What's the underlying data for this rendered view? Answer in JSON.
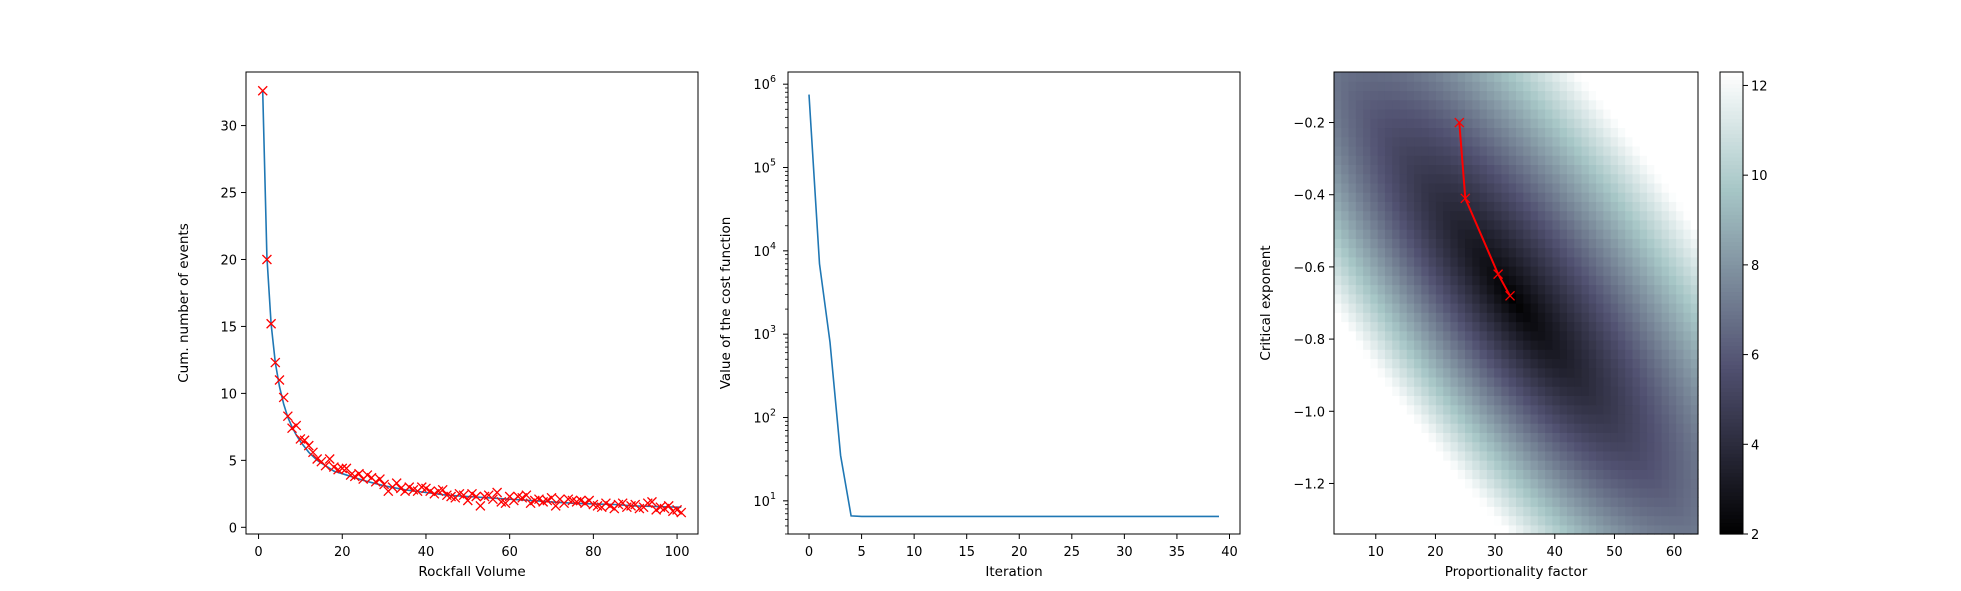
{
  "chart_data": [
    {
      "type": "line",
      "xlabel": "Rockfall Volume",
      "ylabel": "Cum. number of events",
      "xlim": [
        -3,
        105
      ],
      "ylim": [
        -0.5,
        34
      ],
      "xticks": [
        0,
        20,
        40,
        60,
        80,
        100
      ],
      "yticks": [
        0,
        5,
        10,
        15,
        20,
        25,
        30
      ],
      "series": [
        {
          "kind": "scatter",
          "marker": "x",
          "color": "#ff0000",
          "x": [
            1,
            2,
            3,
            4,
            5,
            6,
            7,
            8,
            9,
            10,
            11,
            12,
            13,
            14,
            15,
            16,
            17,
            18,
            19,
            20,
            21,
            22,
            23,
            24,
            25,
            26,
            27,
            28,
            29,
            30,
            31,
            32,
            33,
            34,
            35,
            36,
            37,
            38,
            39,
            40,
            41,
            42,
            43,
            44,
            45,
            46,
            47,
            48,
            49,
            50,
            51,
            52,
            53,
            54,
            55,
            56,
            57,
            58,
            59,
            60,
            61,
            62,
            63,
            64,
            65,
            66,
            67,
            68,
            69,
            70,
            71,
            72,
            73,
            74,
            75,
            76,
            77,
            78,
            79,
            80,
            81,
            82,
            83,
            84,
            85,
            86,
            87,
            88,
            89,
            90,
            91,
            92,
            93,
            94,
            95,
            96,
            97,
            98,
            99,
            100,
            101
          ],
          "y": [
            32.6,
            20.0,
            15.2,
            12.3,
            11.0,
            9.7,
            8.3,
            7.4,
            7.6,
            6.6,
            6.5,
            6.1,
            5.6,
            5.1,
            4.9,
            4.6,
            5.1,
            4.5,
            4.3,
            4.4,
            4.4,
            3.9,
            3.8,
            4.0,
            3.6,
            3.9,
            3.7,
            3.4,
            3.6,
            3.2,
            2.7,
            3.0,
            3.3,
            2.9,
            2.7,
            3.0,
            2.8,
            2.7,
            3.0,
            2.9,
            2.7,
            2.5,
            2.7,
            2.8,
            2.4,
            2.3,
            2.2,
            2.5,
            2.4,
            2.0,
            2.5,
            2.3,
            1.6,
            2.3,
            2.4,
            2.1,
            2.6,
            1.9,
            1.8,
            2.3,
            2.0,
            2.3,
            2.2,
            2.4,
            1.8,
            2.0,
            2.1,
            1.9,
            2.0,
            2.2,
            1.6,
            2.1,
            1.8,
            2.1,
            2.0,
            1.9,
            2.0,
            1.8,
            2.0,
            1.7,
            1.6,
            1.5,
            1.8,
            1.6,
            1.4,
            1.7,
            1.8,
            1.5,
            1.6,
            1.7,
            1.4,
            1.5,
            1.8,
            1.9,
            1.3,
            1.5,
            1.4,
            1.6,
            1.2,
            1.3,
            1.1
          ]
        },
        {
          "kind": "line",
          "color": "#1f77b4",
          "x": [
            1,
            2,
            3,
            4,
            5,
            6,
            7,
            8,
            9,
            10,
            12,
            14,
            16,
            18,
            20,
            25,
            30,
            35,
            40,
            45,
            50,
            55,
            60,
            65,
            70,
            75,
            80,
            85,
            90,
            95,
            100,
            101
          ],
          "y": [
            32.6,
            20.2,
            15.2,
            12.3,
            10.5,
            9.2,
            8.2,
            7.5,
            6.9,
            6.4,
            5.6,
            5.0,
            4.6,
            4.2,
            4.0,
            3.5,
            3.1,
            2.8,
            2.6,
            2.4,
            2.3,
            2.2,
            2.1,
            2.0,
            1.9,
            1.8,
            1.75,
            1.7,
            1.6,
            1.55,
            1.5,
            1.5
          ]
        }
      ]
    },
    {
      "type": "line",
      "xlabel": "Iteration",
      "ylabel": "Value of the cost function",
      "yscale": "log",
      "xlim": [
        -2,
        41
      ],
      "ylim": [
        4,
        1400000
      ],
      "xticks": [
        0,
        5,
        10,
        15,
        20,
        25,
        30,
        35,
        40
      ],
      "yticks": [
        {
          "value": 10,
          "base": "10",
          "exp": "1"
        },
        {
          "value": 100,
          "base": "10",
          "exp": "2"
        },
        {
          "value": 1000,
          "base": "10",
          "exp": "3"
        },
        {
          "value": 10000,
          "base": "10",
          "exp": "4"
        },
        {
          "value": 100000,
          "base": "10",
          "exp": "5"
        },
        {
          "value": 1000000,
          "base": "10",
          "exp": "6"
        }
      ],
      "series": [
        {
          "color": "#1f77b4",
          "x": [
            0,
            1,
            2,
            3,
            4,
            5,
            10,
            15,
            20,
            25,
            30,
            35,
            39
          ],
          "y": [
            750000,
            7000,
            800,
            35,
            6.6,
            6.5,
            6.5,
            6.5,
            6.5,
            6.5,
            6.5,
            6.5,
            6.5
          ]
        }
      ]
    },
    {
      "type": "heatmap",
      "xlabel": "Proportionality factor",
      "ylabel": "Critical exponent",
      "xlim": [
        3,
        64
      ],
      "ylim": [
        -1.34,
        -0.06
      ],
      "xticks": [
        10,
        20,
        30,
        40,
        50,
        60
      ],
      "yticks": [
        -1.2,
        -1.0,
        -0.8,
        -0.6,
        -0.4,
        -0.2
      ],
      "colormap": "bone",
      "grid": [
        50,
        50
      ],
      "minimum": {
        "x": 33,
        "y": -0.69
      },
      "colorbar": {
        "range": [
          2,
          12.3
        ],
        "ticks": [
          2,
          4,
          6,
          8,
          10,
          12
        ]
      },
      "path": {
        "color": "#ff0000",
        "marker": "x",
        "x": [
          24,
          25,
          30.5,
          32.5
        ],
        "y": [
          -0.2,
          -0.41,
          -0.62,
          -0.68
        ]
      }
    }
  ]
}
